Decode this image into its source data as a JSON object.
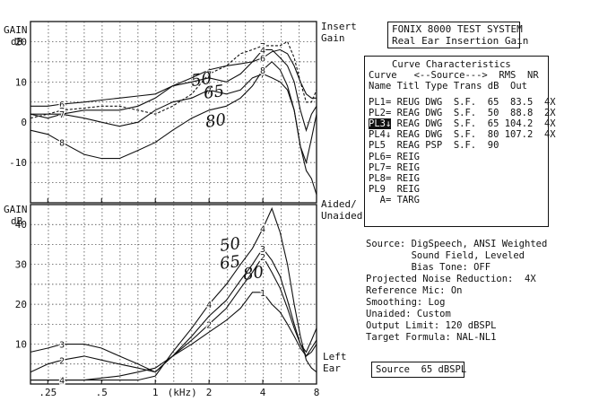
{
  "system_box": {
    "line1": "FONIX 8000 TEST SYSTEM",
    "line2": "Real Ear Insertion Gain"
  },
  "top_chart": {
    "ylabel_gain": "GAIN",
    "ylabel_unit": "dB",
    "right_label_1": "Insert",
    "right_label_2": "Gain"
  },
  "bottom_chart": {
    "ylabel_gain": "GAIN",
    "ylabel_unit": "dB",
    "right_label_1": "Aided/",
    "right_label_2": "Unaided",
    "right_label_3": "Left",
    "right_label_4": "Ear"
  },
  "x_axis": {
    "unit_label": "(kHz)"
  },
  "curve_table": {
    "title": "Curve Characteristics",
    "header1": "Curve   <--Source--->  RMS  NR",
    "header2": "Name Titl Type Trans dB  Out",
    "rows": [
      "PL1= REUG DWG  S.F.  65  83.5  4X",
      "PL2= REAG DWG  S.F.  50  88.8  2X",
      "PL3↓ REAG DWG  S.F.  65 104.2  4X",
      "PL4↓ REAG DWG  S.F.  80 107.2  4X",
      "PL5  REAG PSP  S.F.  90",
      "PL6= REIG",
      "PL7= REIG",
      "PL8= REIG",
      "PL9  REIG",
      "  A= TARG"
    ],
    "highlight_row": 2,
    "highlight_text": "PL3"
  },
  "info": {
    "lines": [
      "Source: DigSpeech, ANSI Weighted",
      "        Sound Field, Leveled",
      "        Bias Tone: OFF",
      "Projected Noise Reduction:  4X",
      "Reference Mic: On",
      "Smoothing: Log",
      "Unaided: Custom",
      "Output Limit: 120 dBSPL",
      "Target Formula: NAL-NL1"
    ]
  },
  "source_box": {
    "text": "Source  65 dBSPL"
  },
  "handwriting": {
    "top": [
      "50",
      "65",
      "80"
    ],
    "bottom": [
      "50",
      "65",
      "80"
    ]
  },
  "chart_data": [
    {
      "type": "line",
      "title": "Insert Gain",
      "ylabel": "GAIN dB",
      "xlabel": "(kHz)",
      "xscale": "log",
      "xlim": [
        0.2,
        8
      ],
      "ylim": [
        -20,
        25
      ],
      "xticks": [
        ".25",
        ".5",
        "1",
        "2",
        "4",
        "8"
      ],
      "yticks": [
        -10,
        0,
        10,
        20
      ],
      "grid": true,
      "series": [
        {
          "name": "6",
          "x": [
            0.2,
            0.25,
            0.3,
            0.4,
            0.5,
            0.63,
            0.8,
            1,
            1.25,
            1.6,
            2,
            2.5,
            3,
            3.5,
            4,
            4.5,
            5,
            5.5,
            6,
            6.5,
            7,
            7.5,
            8
          ],
          "y": [
            4,
            4,
            4.5,
            5,
            5.5,
            6,
            6.5,
            7,
            9,
            11,
            13,
            14,
            14.5,
            15,
            16,
            17.5,
            18,
            17,
            14,
            10,
            7,
            6,
            6
          ]
        },
        {
          "name": "7",
          "x": [
            0.2,
            0.25,
            0.3,
            0.4,
            0.5,
            0.63,
            0.8,
            1,
            1.25,
            1.6,
            2,
            2.5,
            3,
            3.5,
            4,
            4.5,
            5,
            5.5,
            6,
            6.5,
            7,
            7.5,
            8
          ],
          "y": [
            1,
            2,
            3,
            3.5,
            4,
            4,
            3,
            2,
            4,
            7,
            12,
            14,
            17,
            18,
            19,
            19,
            19,
            20,
            16,
            10,
            5,
            5,
            8
          ]
        },
        {
          "name": "4",
          "x": [
            0.2,
            0.25,
            0.3,
            0.4,
            0.5,
            0.63,
            0.8,
            1,
            1.25,
            1.6,
            2,
            2.5,
            3,
            3.5,
            4,
            4.5,
            5,
            5.5,
            6,
            6.5,
            7,
            7.5,
            8
          ],
          "y": [
            2,
            1,
            2,
            3,
            3,
            3,
            4,
            6,
            9,
            10,
            11,
            10,
            12,
            15,
            18,
            18,
            16,
            14,
            10,
            3,
            -2,
            2,
            4
          ]
        },
        {
          "name": "7",
          "x": [
            0.2,
            0.25,
            0.3,
            0.4,
            0.5,
            0.63,
            0.8,
            1,
            1.25,
            1.6,
            2,
            2.5,
            3,
            3.5,
            4,
            4.5,
            5,
            5.5,
            6,
            6.5,
            7,
            7.5,
            8
          ],
          "y": [
            2,
            2,
            2,
            1,
            0,
            -1,
            0,
            3,
            5,
            6,
            8,
            7,
            8,
            11,
            12,
            11,
            10,
            8,
            3,
            -6,
            -10,
            -4,
            2
          ]
        },
        {
          "name": "8",
          "x": [
            0.2,
            0.25,
            0.3,
            0.4,
            0.5,
            0.63,
            0.8,
            1,
            1.25,
            1.6,
            2,
            2.5,
            3,
            3.5,
            4,
            4.5,
            5,
            5.5,
            6,
            6.5,
            7,
            7.5,
            8
          ],
          "y": [
            -2,
            -3,
            -5,
            -8,
            -9,
            -9,
            -7,
            -5,
            -2,
            1,
            3,
            4,
            6,
            9,
            13,
            15,
            13,
            9,
            3,
            -6,
            -12,
            -14,
            -18
          ]
        }
      ]
    },
    {
      "type": "line",
      "title": "Aided/Unaided",
      "ylabel": "GAIN dB",
      "xlabel": "(kHz)",
      "xscale": "log",
      "xlim": [
        0.2,
        8
      ],
      "ylim": [
        0,
        45
      ],
      "xticks": [
        ".25",
        ".5",
        "1",
        "2",
        "4",
        "8"
      ],
      "yticks": [
        10,
        20,
        30,
        40
      ],
      "grid": true,
      "series": [
        {
          "name": "1",
          "x": [
            0.2,
            0.25,
            0.3,
            0.4,
            0.5,
            0.63,
            0.8,
            1,
            1.25,
            1.6,
            2,
            2.5,
            3,
            3.5,
            4,
            4.5,
            5,
            5.5,
            6,
            6.5,
            7,
            7.5,
            8
          ],
          "y": [
            1,
            1,
            1,
            1,
            1.5,
            2,
            3,
            4,
            7,
            10,
            13,
            16,
            19,
            23,
            23,
            20,
            18,
            15,
            12,
            9,
            7,
            8,
            10
          ]
        },
        {
          "name": "2",
          "x": [
            0.2,
            0.25,
            0.3,
            0.4,
            0.5,
            0.63,
            0.8,
            1,
            1.25,
            1.6,
            2,
            2.5,
            3,
            3.5,
            4,
            4.5,
            5,
            5.5,
            6,
            6.5,
            7,
            7.5,
            8
          ],
          "y": [
            3,
            5,
            6,
            7,
            6,
            5,
            4,
            3,
            7,
            11,
            15,
            19,
            24,
            28,
            32,
            28,
            24,
            19,
            14,
            10,
            8,
            11,
            14
          ]
        },
        {
          "name": "3",
          "x": [
            0.2,
            0.25,
            0.3,
            0.4,
            0.5,
            0.63,
            0.8,
            1,
            1.25,
            1.6,
            2,
            2.5,
            3,
            3.5,
            4,
            4.5,
            5,
            5.5,
            6,
            6.5,
            7,
            7.5,
            8
          ],
          "y": [
            8,
            9,
            10,
            10,
            9,
            7,
            5,
            3,
            7,
            12,
            17,
            21,
            26,
            30,
            34,
            31,
            27,
            21,
            15,
            10,
            7,
            9,
            11
          ]
        },
        {
          "name": "4",
          "x": [
            0.2,
            0.25,
            0.3,
            0.4,
            0.5,
            0.63,
            0.8,
            1,
            1.25,
            1.6,
            2,
            2.5,
            3,
            3.5,
            4,
            4.5,
            5,
            5.5,
            6,
            6.5,
            7,
            7.5,
            8
          ],
          "y": [
            1,
            1,
            1,
            1,
            1,
            1,
            1,
            2,
            8,
            14,
            20,
            25,
            30,
            34,
            39,
            44,
            38,
            30,
            20,
            12,
            6,
            4,
            3
          ]
        }
      ]
    }
  ]
}
